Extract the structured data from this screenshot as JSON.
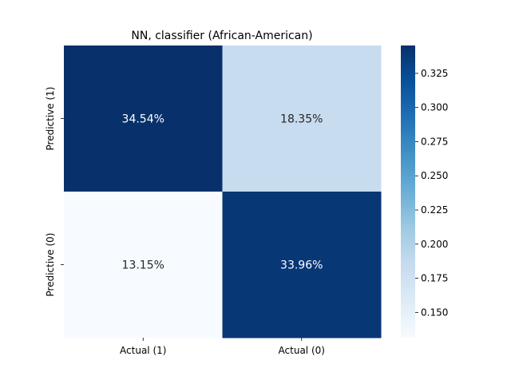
{
  "chart_data": {
    "type": "heatmap",
    "title": "NN, classifier (African-American)",
    "x_categories": [
      "Actual (1)",
      "Actual (0)"
    ],
    "y_categories": [
      "Predictive (1)",
      "Predictive (0)"
    ],
    "values": [
      [
        0.3454,
        0.1835
      ],
      [
        0.1315,
        0.3396
      ]
    ],
    "annotations": [
      [
        "34.54%",
        "18.35%"
      ],
      [
        "13.15%",
        "33.96%"
      ]
    ],
    "colormap": "Blues",
    "colorbar": {
      "min": 0.1315,
      "max": 0.3454,
      "ticks": [
        0.15,
        0.175,
        0.2,
        0.225,
        0.25,
        0.275,
        0.3,
        0.325
      ],
      "tick_labels": [
        "0.150",
        "0.175",
        "0.200",
        "0.225",
        "0.250",
        "0.275",
        "0.300",
        "0.325"
      ]
    },
    "colors": {
      "low": "#f7fbff",
      "high": "#08306b",
      "text_dark": "#262626",
      "text_light": "#ffffff"
    }
  }
}
